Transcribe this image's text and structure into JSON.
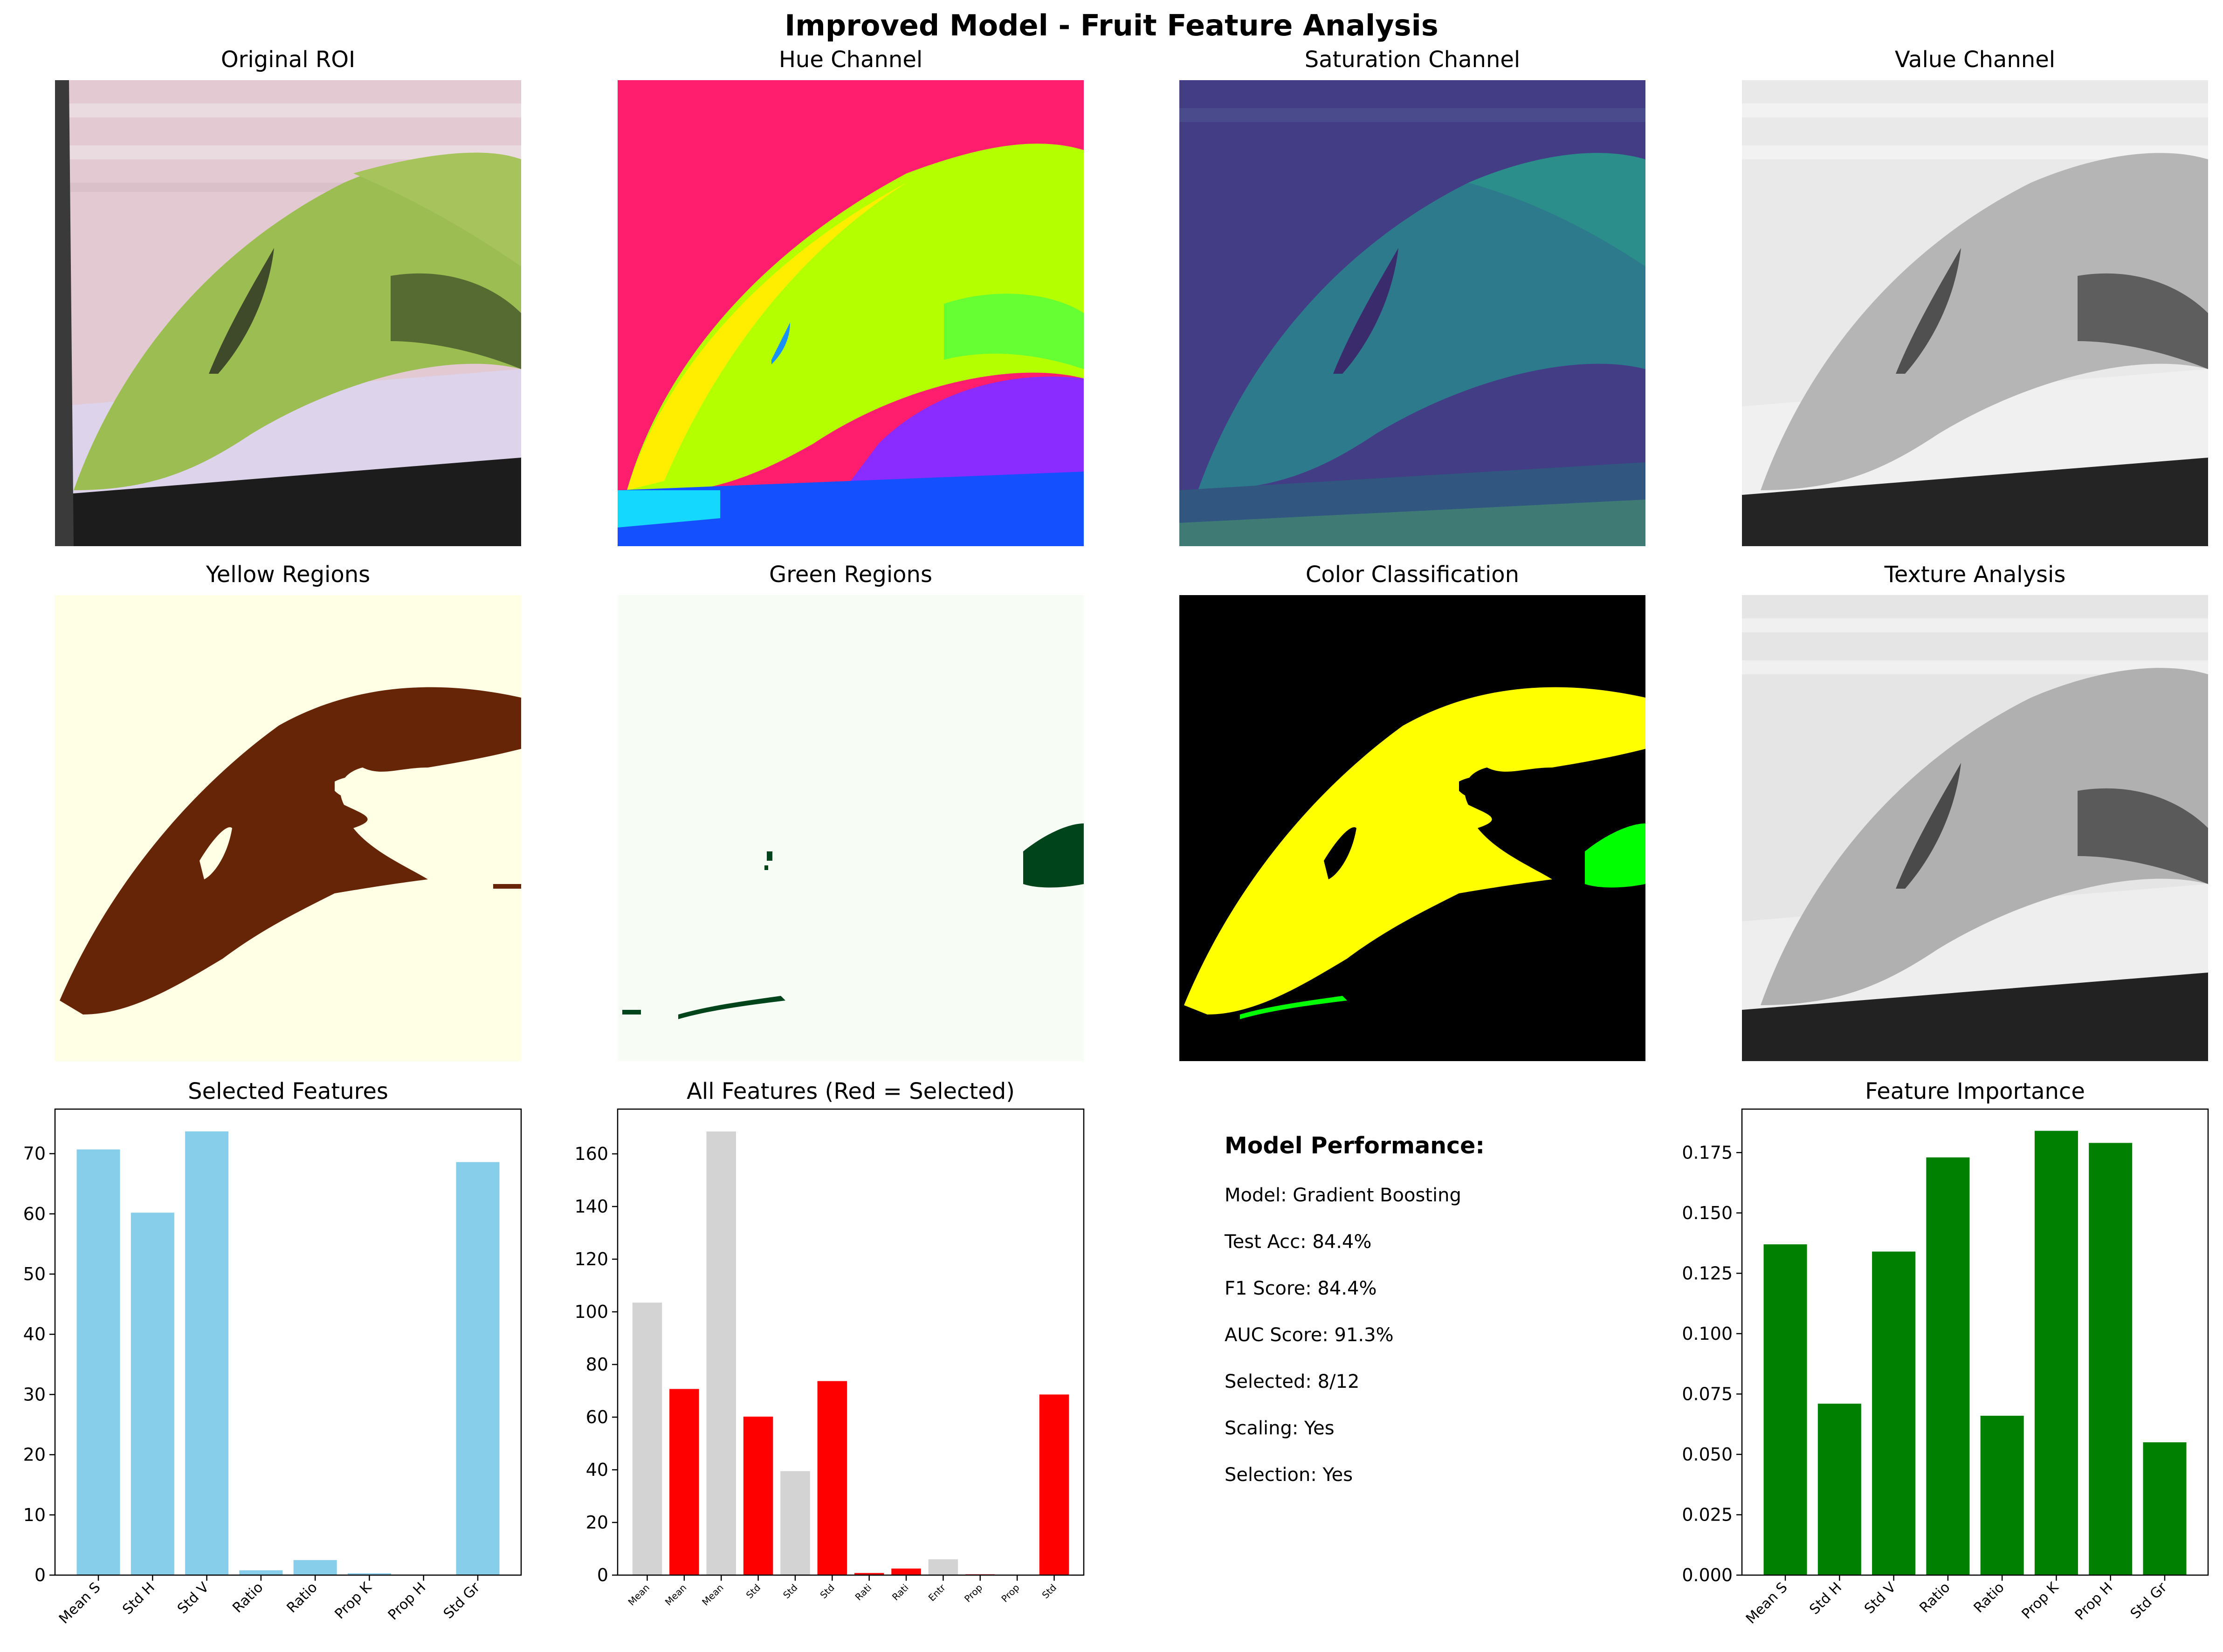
{
  "figure_title": "Improved Model - Fruit Feature Analysis",
  "panels": {
    "original": "Original ROI",
    "hue": "Hue Channel",
    "saturation": "Saturation Channel",
    "value": "Value Channel",
    "yellow": "Yellow Regions",
    "green": "Green Regions",
    "color": "Color Classification",
    "texture": "Texture Analysis"
  },
  "performance": {
    "heading": "Model Performance:",
    "lines": [
      "Model: Gradient Boosting",
      "Test Acc: 84.4%",
      "F1 Score: 84.4%",
      "AUC Score: 91.3%",
      "Selected: 8/12",
      "Scaling: Yes",
      "Selection: Yes"
    ]
  },
  "colors": {
    "selected_bar": "#87ceeb",
    "highlight": "#ff0000",
    "unselected": "#d3d3d3",
    "importance": "#008000"
  },
  "chart_data": [
    {
      "type": "bar",
      "title": "Selected Features",
      "categories": [
        "Mean S",
        "Std H",
        "Std V",
        "Ratio",
        "Ratio",
        "Prop K",
        "Prop H",
        "Std Gr"
      ],
      "values": [
        70.7,
        60.2,
        73.7,
        0.8,
        2.5,
        0.3,
        0.0,
        68.6
      ],
      "ylim": [
        0,
        77.4
      ],
      "yticks": [
        "0",
        "10",
        "20",
        "30",
        "40",
        "50",
        "60",
        "70"
      ],
      "color": "#87ceeb"
    },
    {
      "type": "bar",
      "title": "All Features (Red = Selected)",
      "categories": [
        "Mean",
        "Mean",
        "Mean",
        "Std",
        "Std",
        "Std",
        "Rati",
        "Rati",
        "Entr",
        "Prop",
        "Prop",
        "Std"
      ],
      "values": [
        103.5,
        70.7,
        168.5,
        60.2,
        39.5,
        73.7,
        0.8,
        2.5,
        6.0,
        0.3,
        0.0,
        68.6
      ],
      "selected": [
        false,
        true,
        false,
        true,
        false,
        true,
        true,
        true,
        false,
        true,
        true,
        true
      ],
      "ylim": [
        0,
        177
      ],
      "yticks": [
        "0",
        "20",
        "40",
        "60",
        "80",
        "100",
        "120",
        "140",
        "160"
      ]
    },
    {
      "type": "bar",
      "title": "Feature Importance",
      "categories": [
        "Mean S",
        "Std H",
        "Std V",
        "Ratio",
        "Ratio",
        "Prop K",
        "Prop H",
        "Std Gr"
      ],
      "values": [
        0.137,
        0.071,
        0.134,
        0.173,
        0.066,
        0.184,
        0.179,
        0.055
      ],
      "ylim": [
        0,
        0.193
      ],
      "yticks": [
        "0.000",
        "0.025",
        "0.050",
        "0.075",
        "0.100",
        "0.125",
        "0.150",
        "0.175"
      ],
      "color": "#008000"
    }
  ]
}
